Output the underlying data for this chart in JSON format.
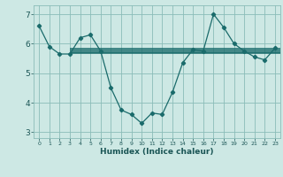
{
  "xlabel": "Humidex (Indice chaleur)",
  "bg_color": "#cde8e4",
  "grid_color": "#8bbcb8",
  "line_color": "#1a6b6b",
  "xlim": [
    -0.5,
    23.5
  ],
  "ylim": [
    2.8,
    7.3
  ],
  "yticks": [
    3,
    4,
    5,
    6,
    7
  ],
  "xticks": [
    0,
    1,
    2,
    3,
    4,
    5,
    6,
    7,
    8,
    9,
    10,
    11,
    12,
    13,
    14,
    15,
    16,
    17,
    18,
    19,
    20,
    21,
    22,
    23
  ],
  "main_curve_x": [
    0,
    1,
    2,
    3,
    4,
    5,
    6,
    7,
    8,
    9,
    10,
    11,
    12,
    13,
    14,
    15,
    16,
    17,
    18,
    19,
    20,
    21,
    22,
    23
  ],
  "main_curve_y": [
    6.6,
    5.9,
    5.65,
    5.65,
    6.2,
    6.3,
    5.75,
    4.5,
    3.75,
    3.6,
    3.3,
    3.65,
    3.6,
    4.35,
    5.35,
    5.8,
    5.75,
    7.0,
    6.55,
    6.0,
    5.75,
    5.55,
    5.45,
    5.85
  ],
  "hlines": [
    {
      "x_start": 3.0,
      "x_end": 23.5,
      "y": 5.82
    },
    {
      "x_start": 3.0,
      "x_end": 23.5,
      "y": 5.76
    },
    {
      "x_start": 3.0,
      "x_end": 23.5,
      "y": 5.71
    },
    {
      "x_start": 3.0,
      "x_end": 23.5,
      "y": 5.67
    }
  ]
}
